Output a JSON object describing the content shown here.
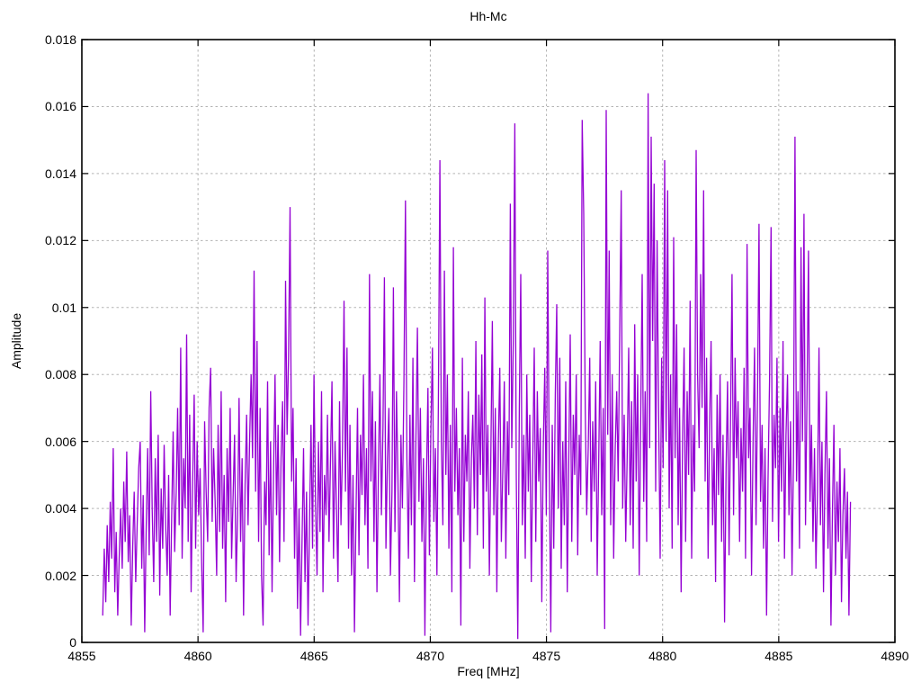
{
  "chart_data": {
    "type": "line",
    "title": "Hh-Mc",
    "xlabel": "Freq [MHz]",
    "ylabel": "Amplitude",
    "xlim": [
      4855,
      4890
    ],
    "ylim": [
      0,
      0.018
    ],
    "xticks": [
      4855,
      4860,
      4865,
      4870,
      4875,
      4880,
      4885,
      4890
    ],
    "xtick_labels": [
      "4855",
      "4860",
      "4865",
      "4870",
      "4875",
      "4880",
      "4885",
      "4890"
    ],
    "yticks": [
      0,
      0.002,
      0.004,
      0.006,
      0.008,
      0.01,
      0.012,
      0.014,
      0.016,
      0.018
    ],
    "ytick_labels": [
      "0",
      "0.002",
      "0.004",
      "0.006",
      "0.008",
      "0.01",
      "0.012",
      "0.014",
      "0.016",
      "0.018"
    ],
    "grid": true,
    "legend": "none",
    "line_color": "#9400D3",
    "grid_color": "#b3b3b3",
    "border_color": "#000000",
    "x_start": 4855.9,
    "x_step": 0.0645,
    "y_scale": 0.0001,
    "amplitudes": [
      8,
      28,
      12,
      35,
      18,
      42,
      25,
      58,
      15,
      33,
      8,
      26,
      40,
      22,
      48,
      30,
      57,
      24,
      38,
      5,
      29,
      45,
      18,
      36,
      52,
      60,
      22,
      44,
      3,
      35,
      58,
      26,
      75,
      40,
      18,
      55,
      30,
      62,
      14,
      46,
      28,
      59,
      35,
      20,
      50,
      8,
      38,
      63,
      27,
      45,
      70,
      35,
      88,
      25,
      55,
      40,
      92,
      30,
      68,
      15,
      48,
      74,
      28,
      60,
      38,
      52,
      24,
      3,
      66,
      45,
      30,
      70,
      82,
      36,
      58,
      42,
      20,
      65,
      33,
      75,
      28,
      50,
      12,
      58,
      36,
      70,
      25,
      44,
      62,
      18,
      38,
      73,
      30,
      55,
      8,
      47,
      68,
      35,
      60,
      80,
      55,
      111,
      45,
      90,
      30,
      70,
      20,
      5,
      48,
      35,
      78,
      26,
      60,
      15,
      52,
      80,
      38,
      65,
      24,
      55,
      72,
      30,
      108,
      62,
      85,
      130,
      48,
      70,
      25,
      55,
      10,
      40,
      2,
      30,
      58,
      18,
      45,
      5,
      35,
      65,
      28,
      80,
      42,
      20,
      60,
      33,
      75,
      15,
      50,
      38,
      68,
      30,
      55,
      78,
      25,
      60,
      40,
      18,
      72,
      35,
      58,
      102,
      45,
      88,
      28,
      65,
      20,
      50,
      3,
      38,
      70,
      26,
      62,
      44,
      80,
      35,
      58,
      22,
      110,
      48,
      75,
      30,
      66,
      15,
      52,
      80,
      38,
      64,
      109,
      28,
      55,
      70,
      20,
      45,
      106,
      33,
      75,
      50,
      12,
      62,
      40,
      78,
      132,
      55,
      25,
      68,
      35,
      85,
      18,
      60,
      94,
      42,
      70,
      30,
      55,
      2,
      48,
      76,
      26,
      64,
      88,
      36,
      58,
      20,
      72,
      144,
      60,
      35,
      111,
      50,
      80,
      28,
      65,
      15,
      118,
      45,
      70,
      38,
      58,
      5,
      85,
      30,
      62,
      48,
      75,
      22,
      55,
      68,
      40,
      90,
      32,
      74,
      50,
      86,
      28,
      103,
      45,
      65,
      20,
      55,
      96,
      38,
      70,
      15,
      60,
      82,
      30,
      52,
      78,
      25,
      66,
      44,
      131,
      58,
      90,
      155,
      50,
      1,
      70,
      110,
      35,
      62,
      25,
      80,
      45,
      68,
      18,
      55,
      88,
      30,
      75,
      48,
      64,
      12,
      58,
      82,
      38,
      117,
      52,
      3,
      65,
      28,
      74,
      101,
      40,
      85,
      22,
      60,
      35,
      78,
      15,
      55,
      92,
      30,
      68,
      50,
      80,
      26,
      62,
      44,
      156,
      128,
      70,
      38,
      58,
      85,
      30,
      66,
      45,
      78,
      20,
      55,
      90,
      38,
      70,
      4,
      159,
      62,
      117,
      35,
      80,
      25,
      58,
      75,
      48,
      92,
      135,
      40,
      68,
      30,
      55,
      88,
      35,
      72,
      28,
      95,
      48,
      80,
      20,
      65,
      110,
      42,
      75,
      30,
      164,
      58,
      151,
      90,
      137,
      45,
      120,
      68,
      25,
      85,
      52,
      144,
      60,
      135,
      40,
      80,
      28,
      121,
      55,
      95,
      35,
      70,
      15,
      62,
      88,
      30,
      75,
      50,
      102,
      25,
      65,
      45,
      147,
      80,
      58,
      110,
      70,
      135,
      48,
      85,
      25,
      66,
      90,
      35,
      58,
      18,
      74,
      44,
      80,
      30,
      62,
      6,
      52,
      78,
      26,
      68,
      110,
      38,
      85,
      55,
      72,
      30,
      64,
      45,
      82,
      25,
      119,
      55,
      70,
      20,
      60,
      88,
      35,
      75,
      125,
      42,
      65,
      28,
      58,
      8,
      48,
      78,
      124,
      36,
      68,
      52,
      85,
      30,
      70,
      45,
      90,
      25,
      62,
      80,
      38,
      66,
      20,
      55,
      151,
      48,
      75,
      28,
      118,
      60,
      128,
      35,
      72,
      117,
      42,
      65,
      30,
      58,
      22,
      45,
      88,
      35,
      60,
      15,
      50,
      75,
      28,
      55,
      5,
      40,
      65,
      20,
      48,
      30,
      58,
      12,
      38,
      52,
      25,
      45,
      8,
      42
    ]
  }
}
